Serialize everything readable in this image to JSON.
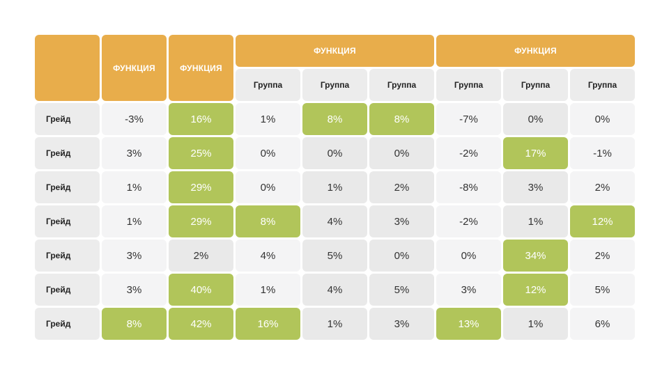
{
  "table": {
    "header": {
      "col1": "ФУНКЦИЯ",
      "col2": "ФУНКЦИЯ",
      "group_a": "ФУНКЦИЯ",
      "group_b": "ФУНКЦИЯ"
    },
    "subheaders": [
      "Группа",
      "Группа",
      "Группа",
      "Группа",
      "Группа",
      "Группа"
    ],
    "rows": [
      {
        "label": "Грейд",
        "values": [
          "-3%",
          "16%",
          "1%",
          "8%",
          "8%",
          "-7%",
          "0%",
          "0%"
        ],
        "highlight": [
          false,
          true,
          false,
          true,
          true,
          false,
          false,
          false
        ]
      },
      {
        "label": "Грейд",
        "values": [
          "3%",
          "25%",
          "0%",
          "0%",
          "0%",
          "-2%",
          "17%",
          "-1%"
        ],
        "highlight": [
          false,
          true,
          false,
          false,
          false,
          false,
          true,
          false
        ]
      },
      {
        "label": "Грейд",
        "values": [
          "1%",
          "29%",
          "0%",
          "1%",
          "2%",
          "-8%",
          "3%",
          "2%"
        ],
        "highlight": [
          false,
          true,
          false,
          false,
          false,
          false,
          false,
          false
        ]
      },
      {
        "label": "Грейд",
        "values": [
          "1%",
          "29%",
          "8%",
          "4%",
          "3%",
          "-2%",
          "1%",
          "12%"
        ],
        "highlight": [
          false,
          true,
          true,
          false,
          false,
          false,
          false,
          true
        ]
      },
      {
        "label": "Грейд",
        "values": [
          "3%",
          "2%",
          "4%",
          "5%",
          "0%",
          "0%",
          "34%",
          "2%"
        ],
        "highlight": [
          false,
          false,
          false,
          false,
          false,
          false,
          true,
          false
        ]
      },
      {
        "label": "Грейд",
        "values": [
          "3%",
          "40%",
          "1%",
          "4%",
          "5%",
          "3%",
          "12%",
          "5%"
        ],
        "highlight": [
          false,
          true,
          false,
          false,
          false,
          false,
          true,
          false
        ]
      },
      {
        "label": "Грейд",
        "values": [
          "8%",
          "42%",
          "16%",
          "1%",
          "3%",
          "13%",
          "1%",
          "6%"
        ],
        "highlight": [
          true,
          true,
          true,
          false,
          false,
          true,
          false,
          false
        ]
      }
    ],
    "colors": {
      "header": "#e8ad4b",
      "highlight": "#b1c55a",
      "label_bg": "#ececec",
      "cell_light": "#f4f4f5",
      "cell_dark": "#e9e9e9"
    }
  }
}
